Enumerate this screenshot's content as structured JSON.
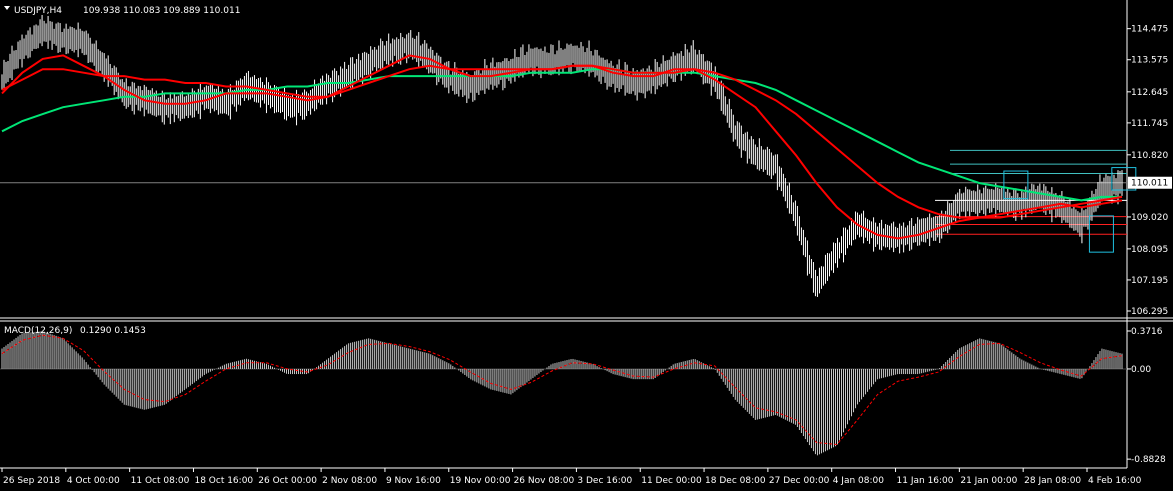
{
  "header": {
    "symbol": "USDJPY,H4",
    "ohlc": "109.938 110.083 109.889 110.011"
  },
  "macd_header": {
    "label": "MACD(12,26,9)",
    "values": "0.1290 0.1453"
  },
  "colors": {
    "background": "#000000",
    "candle": "#ffffff",
    "ma_fast": "#ff0000",
    "ma_mid": "#ff0000",
    "ma_slow": "#00e676",
    "hline_red": "#ff2020",
    "hline_white": "#ffffff",
    "hline_cyan": "#40c0c0",
    "box": "#20c0e0",
    "macd_hist": "#c8c8c8",
    "macd_signal": "#ff0000",
    "price_tag_bg": "#ffffff",
    "price_tag_fg": "#000000"
  },
  "chart_data": [
    {
      "type": "line",
      "title": "USDJPY,H4",
      "price_ticks": [
        "114.475",
        "113.575",
        "112.645",
        "111.745",
        "110.820",
        "109.020",
        "108.095",
        "107.195",
        "106.295"
      ],
      "current_price": "110.011",
      "ylim": [
        106.15,
        114.9
      ],
      "x_labels": [
        "26 Sep 2018",
        "4 Oct 00:00",
        "11 Oct 08:00",
        "18 Oct 16:00",
        "26 Oct 00:00",
        "2 Nov 08:00",
        "9 Nov 16:00",
        "19 Nov 00:00",
        "26 Nov 08:00",
        "3 Dec 16:00",
        "11 Dec 00:00",
        "18 Dec 08:00",
        "27 Dec 00:00",
        "4 Jan 08:00",
        "11 Jan 16:00",
        "21 Jan 00:00",
        "28 Jan 08:00",
        "4 Feb 16:00"
      ],
      "close": [
        113.0,
        113.9,
        114.4,
        114.2,
        114.1,
        113.4,
        112.6,
        112.4,
        112.2,
        112.2,
        112.5,
        112.3,
        112.8,
        112.6,
        112.2,
        112.3,
        112.8,
        113.1,
        113.5,
        113.8,
        114.0,
        113.6,
        113.0,
        112.8,
        113.1,
        113.3,
        113.6,
        113.5,
        113.7,
        113.5,
        113.1,
        112.9,
        113.0,
        113.4,
        113.6,
        113.0,
        111.5,
        110.8,
        110.5,
        109.0,
        107.0,
        108.0,
        108.8,
        108.5,
        108.4,
        108.6,
        108.7,
        109.4,
        109.5,
        109.5,
        109.4,
        109.6,
        109.3,
        108.8,
        109.8,
        110.0
      ],
      "ma_fast": [
        112.6,
        113.2,
        113.6,
        113.7,
        113.4,
        113.1,
        112.7,
        112.4,
        112.3,
        112.3,
        112.4,
        112.6,
        112.6,
        112.6,
        112.5,
        112.4,
        112.5,
        112.8,
        113.1,
        113.4,
        113.7,
        113.6,
        113.3,
        113.1,
        113.1,
        113.2,
        113.3,
        113.3,
        113.4,
        113.4,
        113.2,
        113.1,
        113.1,
        113.3,
        113.3,
        113.0,
        112.6,
        112.2,
        111.5,
        110.8,
        110.0,
        109.3,
        108.8,
        108.5,
        108.4,
        108.5,
        108.7,
        108.9,
        109.0,
        109.1,
        109.2,
        109.3,
        109.4,
        109.3,
        109.4,
        109.5
      ],
      "ma_mid": [
        112.7,
        113.0,
        113.3,
        113.3,
        113.2,
        113.1,
        113.1,
        113.0,
        113.0,
        112.9,
        112.9,
        112.8,
        112.8,
        112.7,
        112.6,
        112.5,
        112.5,
        112.7,
        112.9,
        113.1,
        113.3,
        113.4,
        113.3,
        113.3,
        113.3,
        113.3,
        113.3,
        113.3,
        113.4,
        113.4,
        113.3,
        113.2,
        113.2,
        113.2,
        113.3,
        113.2,
        113.0,
        112.7,
        112.4,
        112.0,
        111.5,
        111.0,
        110.5,
        110.0,
        109.6,
        109.3,
        109.1,
        109.0,
        109.0,
        109.0,
        109.1,
        109.2,
        109.3,
        109.4,
        109.5,
        109.6
      ],
      "ma_slow": [
        111.5,
        111.8,
        112.0,
        112.2,
        112.3,
        112.4,
        112.5,
        112.5,
        112.6,
        112.6,
        112.6,
        112.6,
        112.7,
        112.7,
        112.8,
        112.8,
        112.9,
        112.9,
        113.0,
        113.1,
        113.1,
        113.1,
        113.1,
        113.1,
        113.1,
        113.1,
        113.2,
        113.2,
        113.2,
        113.3,
        113.3,
        113.2,
        113.2,
        113.2,
        113.2,
        113.1,
        113.0,
        112.9,
        112.7,
        112.4,
        112.1,
        111.8,
        111.5,
        111.2,
        110.9,
        110.6,
        110.4,
        110.2,
        110.0,
        109.9,
        109.8,
        109.7,
        109.6,
        109.5,
        109.6,
        109.6
      ],
      "hlines": [
        {
          "name": "red-level-1",
          "price": 109.03
        },
        {
          "name": "red-level-2",
          "price": 108.8
        },
        {
          "name": "red-level-3",
          "price": 108.52
        },
        {
          "name": "white-level",
          "price": 109.5
        },
        {
          "name": "cyan-level-1",
          "price": 110.95
        },
        {
          "name": "cyan-level-2",
          "price": 110.55
        },
        {
          "name": "cyan-level-3",
          "price": 110.28
        }
      ]
    },
    {
      "type": "bar",
      "title": "MACD(12,26,9)",
      "ticks": [
        "0.3716",
        "0.00",
        "-0.8828"
      ],
      "ylim": [
        -0.95,
        0.44
      ],
      "histogram": [
        0.2,
        0.35,
        0.37,
        0.3,
        0.1,
        -0.15,
        -0.35,
        -0.4,
        -0.35,
        -0.2,
        -0.05,
        0.05,
        0.1,
        0.05,
        -0.05,
        -0.05,
        0.1,
        0.25,
        0.3,
        0.25,
        0.2,
        0.15,
        0.05,
        -0.1,
        -0.2,
        -0.25,
        -0.1,
        0.05,
        0.1,
        0.05,
        -0.05,
        -0.1,
        -0.1,
        0.05,
        0.1,
        0.0,
        -0.3,
        -0.5,
        -0.45,
        -0.55,
        -0.85,
        -0.75,
        -0.35,
        -0.1,
        -0.05,
        -0.05,
        0.0,
        0.2,
        0.3,
        0.25,
        0.1,
        0.0,
        -0.05,
        -0.1,
        0.2,
        0.15
      ],
      "signal": [
        0.15,
        0.28,
        0.33,
        0.3,
        0.18,
        -0.02,
        -0.2,
        -0.3,
        -0.32,
        -0.25,
        -0.12,
        0.0,
        0.06,
        0.06,
        0.0,
        -0.03,
        0.04,
        0.16,
        0.24,
        0.25,
        0.22,
        0.17,
        0.09,
        -0.03,
        -0.14,
        -0.2,
        -0.13,
        -0.02,
        0.06,
        0.05,
        -0.01,
        -0.07,
        -0.08,
        0.0,
        0.06,
        0.03,
        -0.18,
        -0.38,
        -0.42,
        -0.5,
        -0.72,
        -0.74,
        -0.5,
        -0.25,
        -0.12,
        -0.08,
        -0.03,
        0.12,
        0.24,
        0.25,
        0.16,
        0.06,
        -0.01,
        -0.07,
        0.1,
        0.13
      ]
    }
  ]
}
